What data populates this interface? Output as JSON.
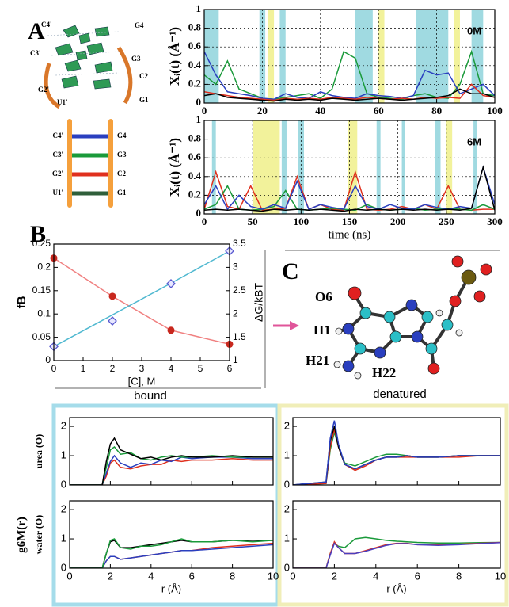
{
  "panel_labels": [
    "A",
    "B",
    "C"
  ],
  "hairpin_labels": [
    "C4'",
    "G4",
    "G3",
    "C3'",
    "C2",
    "G2'",
    "G1",
    "U1'"
  ],
  "ladder_labels": [
    [
      "C4'",
      "G4"
    ],
    [
      "C3'",
      "G3"
    ],
    [
      "G2'",
      "C2"
    ],
    [
      "U1'",
      "G1"
    ]
  ],
  "molecule_labels": [
    "O6",
    "H1",
    "H21",
    "H22"
  ],
  "captions": {
    "bound": "bound",
    "denatured": "denatured"
  },
  "rdf_ylabel": "g6M(r)",
  "chart_data": [
    {
      "type": "line",
      "ylabel": "Xᵢ(t) (Å⁻¹)",
      "annotation": "0M",
      "grid": true,
      "xlim": [
        0,
        100
      ],
      "xticks": [
        0,
        20,
        40,
        60,
        80,
        100
      ],
      "ylim": [
        0,
        1
      ],
      "yticks": [
        0,
        0.2,
        0.4,
        0.6,
        0.8,
        1
      ],
      "bands": [
        {
          "start": 0,
          "end": 5,
          "color": "#8fd3dc"
        },
        {
          "start": 19,
          "end": 21,
          "color": "#8fd3dc"
        },
        {
          "start": 26,
          "end": 28,
          "color": "#8fd3dc"
        },
        {
          "start": 52,
          "end": 58,
          "color": "#8fd3dc"
        },
        {
          "start": 73,
          "end": 84,
          "color": "#8fd3dc"
        },
        {
          "start": 92,
          "end": 96,
          "color": "#8fd3dc"
        },
        {
          "start": 22,
          "end": 24,
          "color": "#f0f08a"
        },
        {
          "start": 60,
          "end": 62,
          "color": "#f0f08a"
        },
        {
          "start": 86,
          "end": 88,
          "color": "#f0f08a"
        }
      ],
      "x": [
        0,
        4,
        8,
        12,
        16,
        20,
        24,
        28,
        32,
        36,
        40,
        44,
        48,
        52,
        56,
        60,
        64,
        68,
        72,
        76,
        80,
        84,
        88,
        92,
        96,
        100
      ],
      "series": [
        {
          "color": "#1a9a3a",
          "values": [
            0.3,
            0.2,
            0.45,
            0.15,
            0.1,
            0.05,
            0.04,
            0.06,
            0.08,
            0.1,
            0.05,
            0.15,
            0.55,
            0.48,
            0.1,
            0.06,
            0.05,
            0.04,
            0.08,
            0.1,
            0.06,
            0.05,
            0.2,
            0.55,
            0.1,
            0.08
          ]
        },
        {
          "color": "#2a3fbf",
          "values": [
            0.55,
            0.3,
            0.12,
            0.1,
            0.08,
            0.05,
            0.04,
            0.1,
            0.06,
            0.05,
            0.12,
            0.08,
            0.06,
            0.05,
            0.1,
            0.08,
            0.07,
            0.05,
            0.08,
            0.35,
            0.3,
            0.32,
            0.1,
            0.15,
            0.2,
            0.08
          ]
        },
        {
          "color": "#e0301e",
          "values": [
            0.12,
            0.1,
            0.08,
            0.06,
            0.05,
            0.04,
            0.03,
            0.05,
            0.04,
            0.05,
            0.04,
            0.06,
            0.05,
            0.04,
            0.06,
            0.05,
            0.04,
            0.05,
            0.04,
            0.06,
            0.05,
            0.06,
            0.05,
            0.2,
            0.08,
            0.06
          ]
        },
        {
          "color": "#000000",
          "values": [
            0.08,
            0.1,
            0.06,
            0.05,
            0.04,
            0.03,
            0.02,
            0.04,
            0.03,
            0.04,
            0.03,
            0.05,
            0.04,
            0.03,
            0.04,
            0.05,
            0.04,
            0.03,
            0.04,
            0.05,
            0.06,
            0.08,
            0.15,
            0.1,
            0.1,
            0.06
          ]
        }
      ]
    },
    {
      "type": "line",
      "ylabel": "Xᵢ(t) (Å⁻¹)",
      "xlabel": "time (ns)",
      "annotation": "6M",
      "grid": true,
      "xlim": [
        0,
        300
      ],
      "xticks": [
        0,
        50,
        100,
        150,
        200,
        250,
        300
      ],
      "ylim": [
        0,
        1
      ],
      "yticks": [
        0,
        0.2,
        0.4,
        0.6,
        0.8,
        1
      ],
      "bands": [
        {
          "start": 50,
          "end": 78,
          "color": "#f0f08a"
        },
        {
          "start": 148,
          "end": 158,
          "color": "#f0f08a"
        },
        {
          "start": 250,
          "end": 256,
          "color": "#f0f08a"
        },
        {
          "start": 8,
          "end": 12,
          "color": "#8fd3dc"
        },
        {
          "start": 80,
          "end": 85,
          "color": "#8fd3dc"
        },
        {
          "start": 97,
          "end": 103,
          "color": "#8fd3dc"
        },
        {
          "start": 178,
          "end": 182,
          "color": "#8fd3dc"
        },
        {
          "start": 204,
          "end": 207,
          "color": "#8fd3dc"
        },
        {
          "start": 238,
          "end": 244,
          "color": "#8fd3dc"
        },
        {
          "start": 278,
          "end": 282,
          "color": "#8fd3dc"
        }
      ],
      "x": [
        0,
        12,
        24,
        36,
        48,
        60,
        72,
        84,
        96,
        108,
        120,
        132,
        144,
        156,
        168,
        180,
        192,
        204,
        216,
        228,
        240,
        252,
        264,
        276,
        288,
        300
      ],
      "series": [
        {
          "color": "#e0301e",
          "values": [
            0.05,
            0.45,
            0.08,
            0.05,
            0.3,
            0.04,
            0.05,
            0.06,
            0.4,
            0.05,
            0.1,
            0.05,
            0.04,
            0.45,
            0.05,
            0.04,
            0.05,
            0.08,
            0.05,
            0.1,
            0.05,
            0.3,
            0.05,
            0.04,
            0.05,
            0.05
          ]
        },
        {
          "color": "#1a9a3a",
          "values": [
            0.05,
            0.1,
            0.3,
            0.05,
            0.04,
            0.05,
            0.08,
            0.25,
            0.05,
            0.04,
            0.05,
            0.06,
            0.05,
            0.04,
            0.1,
            0.05,
            0.04,
            0.05,
            0.06,
            0.04,
            0.05,
            0.06,
            0.05,
            0.04,
            0.1,
            0.05
          ]
        },
        {
          "color": "#2a3fbf",
          "values": [
            0.1,
            0.3,
            0.05,
            0.2,
            0.08,
            0.05,
            0.1,
            0.06,
            0.35,
            0.05,
            0.1,
            0.07,
            0.05,
            0.3,
            0.08,
            0.05,
            0.1,
            0.06,
            0.05,
            0.1,
            0.07,
            0.05,
            0.08,
            0.06,
            0.5,
            0.1
          ]
        },
        {
          "color": "#000000",
          "values": [
            0.04,
            0.05,
            0.04,
            0.05,
            0.04,
            0.03,
            0.05,
            0.04,
            0.05,
            0.04,
            0.05,
            0.04,
            0.03,
            0.05,
            0.04,
            0.05,
            0.04,
            0.05,
            0.04,
            0.05,
            0.04,
            0.05,
            0.04,
            0.06,
            0.5,
            0.04
          ]
        }
      ]
    },
    {
      "type": "line",
      "ylabel": "fB",
      "y2label": "ΔG/kBT",
      "xlabel": "[C], M",
      "ycolor": "#d9352a",
      "y2color": "#5a5ad0",
      "xlim": [
        0,
        6
      ],
      "xticks": [
        0,
        1,
        2,
        3,
        4,
        5,
        6
      ],
      "ylim": [
        0,
        0.25
      ],
      "yticks": [
        0,
        0.05,
        0.1,
        0.15,
        0.2,
        0.25
      ],
      "y2lim": [
        1,
        3.5
      ],
      "y2ticks": [
        1,
        1.5,
        2,
        2.5,
        3,
        3.5
      ],
      "x": [
        0,
        2,
        4,
        6
      ],
      "series": [
        {
          "color": "#f08080",
          "marker": "circle",
          "marker_color": "#c8281e",
          "values": [
            0.22,
            0.138,
            0.065,
            0.035
          ]
        },
        {
          "color": "#4fb8d0",
          "axis": "y2",
          "values": [
            1.3,
            1.98,
            2.66,
            3.35
          ]
        },
        {
          "color": "#5a5ad0",
          "axis": "y2",
          "marker": "diamond",
          "line": false,
          "values": [
            1.3,
            1.85,
            2.65,
            3.35
          ]
        }
      ]
    },
    {
      "type": "line",
      "ylabel": "urea (O)",
      "xlim": [
        0,
        10
      ],
      "xticks": [
        0,
        2,
        4,
        6,
        8,
        10
      ],
      "ylim": [
        0,
        2.3
      ],
      "yticks": [
        0,
        1,
        2
      ],
      "x": [
        0,
        1.6,
        1.8,
        2,
        2.2,
        2.5,
        3,
        3.5,
        4,
        4.5,
        5,
        5.5,
        6,
        7,
        8,
        9,
        10
      ],
      "series": [
        {
          "color": "#e0301e",
          "values": [
            0,
            0,
            0.3,
            0.75,
            0.85,
            0.6,
            0.55,
            0.65,
            0.7,
            0.7,
            0.85,
            0.8,
            0.85,
            0.85,
            0.9,
            0.85,
            0.85
          ]
        },
        {
          "color": "#2a3fbf",
          "values": [
            0,
            0,
            0.4,
            0.8,
            1.0,
            0.75,
            0.6,
            0.75,
            0.7,
            0.85,
            0.8,
            0.95,
            0.9,
            0.95,
            0.95,
            0.9,
            0.9
          ]
        },
        {
          "color": "#1a9a3a",
          "values": [
            0,
            0,
            0.6,
            1.2,
            1.3,
            1.05,
            1.1,
            0.9,
            0.85,
            0.95,
            1.0,
            0.95,
            0.95,
            1.0,
            0.95,
            0.95,
            0.95
          ]
        },
        {
          "color": "#000000",
          "values": [
            0,
            0,
            0.8,
            1.4,
            1.6,
            1.2,
            1.05,
            0.9,
            0.95,
            0.85,
            0.95,
            1.0,
            0.95,
            0.95,
            1.0,
            0.95,
            0.95
          ]
        }
      ]
    },
    {
      "type": "line",
      "xlim": [
        0,
        10
      ],
      "xticks": [
        0,
        2,
        4,
        6,
        8,
        10
      ],
      "ylim": [
        0,
        2.3
      ],
      "yticks": [
        0,
        1,
        2
      ],
      "x": [
        0,
        1.6,
        1.8,
        2,
        2.2,
        2.5,
        3,
        3.5,
        4,
        4.5,
        5,
        5.5,
        6,
        7,
        8,
        9,
        10
      ],
      "series": [
        {
          "color": "#1a9a3a",
          "values": [
            0,
            0.05,
            1.2,
            1.8,
            1.3,
            0.75,
            0.65,
            0.8,
            0.95,
            1.05,
            1.05,
            1.0,
            0.95,
            0.95,
            1.0,
            1.0,
            1.0
          ]
        },
        {
          "color": "#e0301e",
          "values": [
            0,
            0.05,
            1.3,
            1.9,
            1.3,
            0.7,
            0.5,
            0.65,
            0.85,
            0.95,
            0.95,
            0.95,
            0.95,
            0.95,
            0.95,
            1.0,
            1.0
          ]
        },
        {
          "color": "#000000",
          "values": [
            0,
            0.1,
            1.5,
            2.0,
            1.3,
            0.7,
            0.55,
            0.7,
            0.85,
            0.95,
            0.95,
            1.0,
            0.95,
            0.95,
            1.0,
            1.0,
            1.0
          ]
        },
        {
          "color": "#2a3fbf",
          "values": [
            0,
            0.1,
            1.6,
            2.2,
            1.4,
            0.7,
            0.55,
            0.7,
            0.85,
            0.95,
            0.95,
            1.0,
            0.95,
            0.95,
            1.0,
            1.0,
            1.0
          ]
        }
      ]
    },
    {
      "type": "line",
      "ylabel": "water (O)",
      "xlabel": "r (Å)",
      "xlim": [
        0,
        10
      ],
      "xticks": [
        0,
        2,
        4,
        6,
        8,
        10
      ],
      "ylim": [
        0,
        2.3
      ],
      "yticks": [
        0,
        1,
        2
      ],
      "x": [
        0,
        1.6,
        1.8,
        2,
        2.2,
        2.5,
        3,
        3.5,
        4,
        4.5,
        5,
        5.5,
        6,
        7,
        8,
        9,
        10
      ],
      "series": [
        {
          "color": "#e0301e",
          "values": [
            0,
            0,
            0.25,
            0.4,
            0.4,
            0.3,
            0.35,
            0.4,
            0.45,
            0.5,
            0.55,
            0.6,
            0.6,
            0.7,
            0.75,
            0.8,
            0.85
          ]
        },
        {
          "color": "#2a3fbf",
          "values": [
            0,
            0,
            0.25,
            0.4,
            0.4,
            0.3,
            0.35,
            0.4,
            0.45,
            0.5,
            0.55,
            0.6,
            0.6,
            0.65,
            0.7,
            0.75,
            0.8
          ]
        },
        {
          "color": "#000000",
          "values": [
            0,
            0,
            0.5,
            0.9,
            0.95,
            0.7,
            0.7,
            0.75,
            0.8,
            0.85,
            0.9,
            0.95,
            0.9,
            0.9,
            0.95,
            0.95,
            0.95
          ]
        },
        {
          "color": "#1a9a3a",
          "values": [
            0,
            0,
            0.5,
            0.95,
            1.0,
            0.7,
            0.65,
            0.75,
            0.75,
            0.8,
            0.9,
            1.0,
            0.9,
            0.9,
            0.95,
            0.9,
            0.95
          ]
        }
      ]
    },
    {
      "type": "line",
      "xlabel": "r (Å)",
      "xlim": [
        0,
        10
      ],
      "xticks": [
        0,
        2,
        4,
        6,
        8,
        10
      ],
      "ylim": [
        0,
        2.3
      ],
      "yticks": [
        0,
        1,
        2
      ],
      "x": [
        0,
        1.6,
        1.8,
        2,
        2.2,
        2.5,
        3,
        3.5,
        4,
        4.5,
        5,
        5.5,
        6,
        7,
        8,
        9,
        10
      ],
      "series": [
        {
          "color": "#1a9a3a",
          "values": [
            0,
            0,
            0.5,
            0.85,
            0.75,
            0.7,
            1.0,
            1.05,
            1.0,
            0.95,
            0.92,
            0.9,
            0.88,
            0.86,
            0.86,
            0.87,
            0.88
          ]
        },
        {
          "color": "#e0301e",
          "values": [
            0,
            0,
            0.5,
            0.9,
            0.7,
            0.5,
            0.5,
            0.6,
            0.7,
            0.8,
            0.85,
            0.85,
            0.8,
            0.8,
            0.82,
            0.85,
            0.88
          ]
        },
        {
          "color": "#4a3fbf",
          "values": [
            0,
            0,
            0.45,
            0.85,
            0.7,
            0.5,
            0.5,
            0.58,
            0.68,
            0.78,
            0.84,
            0.84,
            0.8,
            0.78,
            0.8,
            0.84,
            0.87
          ]
        }
      ]
    }
  ]
}
